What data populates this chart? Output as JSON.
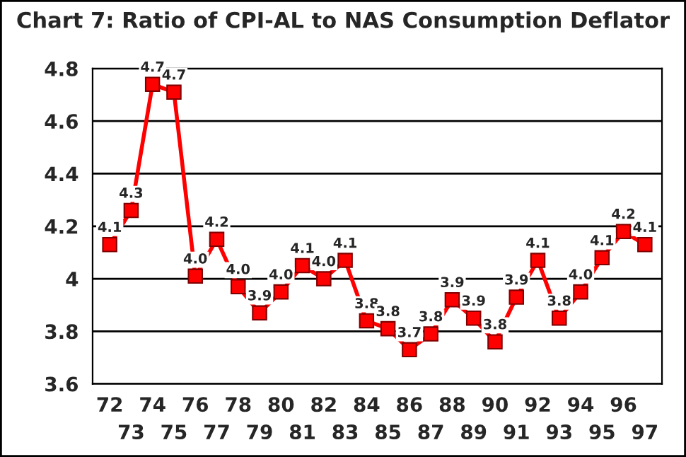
{
  "chart_data": {
    "type": "line",
    "title": "Chart 7: Ratio of CPI-AL to NAS Consumption Deflator",
    "categories": [
      "72",
      "73",
      "74",
      "75",
      "76",
      "77",
      "78",
      "79",
      "80",
      "81",
      "82",
      "83",
      "84",
      "85",
      "86",
      "87",
      "88",
      "89",
      "90",
      "91",
      "92",
      "93",
      "94",
      "95",
      "96",
      "97"
    ],
    "series": [
      {
        "color": "#ff0000",
        "values": [
          4.13,
          4.26,
          4.74,
          4.71,
          4.01,
          4.15,
          3.97,
          3.87,
          3.95,
          4.05,
          4.0,
          4.07,
          3.84,
          3.81,
          3.73,
          3.79,
          3.92,
          3.85,
          3.76,
          3.93,
          4.07,
          3.85,
          3.95,
          4.08,
          4.18,
          4.13
        ],
        "value_labels": [
          "4.1",
          "4.3",
          "4.7",
          "4.7",
          "4.0",
          "4.2",
          "4.0",
          "3.9",
          "4.0",
          "4.1",
          "4.0",
          "4.1",
          "3.8",
          "3.8",
          "3.7",
          "3.8",
          "3.9",
          "3.9",
          "3.8",
          "3.9",
          "4.1",
          "3.8",
          "4.0",
          "4.1",
          "4.2",
          "4.1"
        ]
      }
    ],
    "ylim": [
      3.6,
      4.8
    ],
    "yticks": [
      3.6,
      3.8,
      4,
      4.2,
      4.4,
      4.6,
      4.8
    ],
    "grid": "y",
    "marker": "square",
    "line_style": "solid"
  }
}
